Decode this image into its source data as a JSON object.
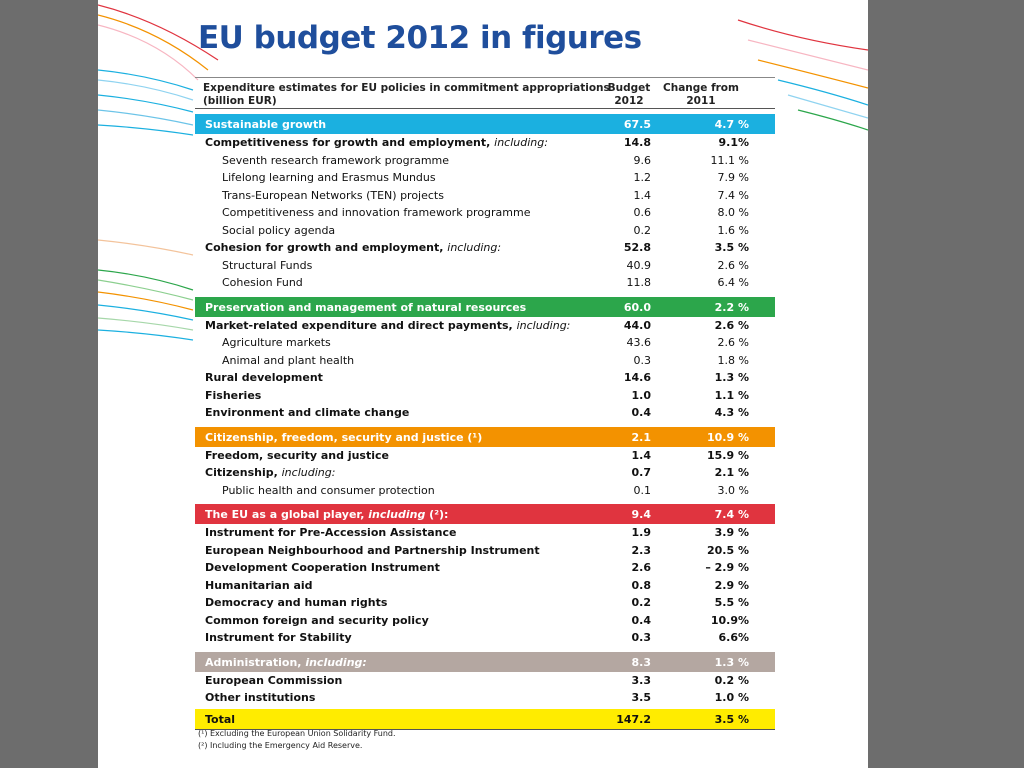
{
  "title": "EU budget 2012 in figures",
  "header": {
    "label": "Expenditure estimates for EU policies in commitment appropriations",
    "unit": "(billion EUR)",
    "budget": "Budget 2012",
    "change": "Change from 2011"
  },
  "sections": [
    {
      "label": "Sustainable growth",
      "budget": "67.5",
      "change": "4.7 %",
      "color": "#1bb0e0",
      "rows": [
        {
          "label": "Competitiveness for growth and employment,",
          "label_italic": "including:",
          "budget": "14.8",
          "change": "9.1%",
          "sub": false
        },
        {
          "label": "Seventh research framework programme",
          "budget": "9.6",
          "change": "11.1 %",
          "sub": true
        },
        {
          "label": "Lifelong learning and Erasmus Mundus",
          "budget": "1.2",
          "change": "7.9 %",
          "sub": true
        },
        {
          "label": "Trans-European Networks (TEN) projects",
          "budget": "1.4",
          "change": "7.4 %",
          "sub": true
        },
        {
          "label": "Competitiveness and innovation framework programme",
          "budget": "0.6",
          "change": "8.0 %",
          "sub": true
        },
        {
          "label": "Social policy agenda",
          "budget": "0.2",
          "change": "1.6 %",
          "sub": true
        },
        {
          "label": "Cohesion for growth and employment,",
          "label_italic": "including:",
          "budget": "52.8",
          "change": "3.5 %",
          "sub": false
        },
        {
          "label": "Structural Funds",
          "budget": "40.9",
          "change": "2.6 %",
          "sub": true
        },
        {
          "label": "Cohesion Fund",
          "budget": "11.8",
          "change": "6.4 %",
          "sub": true
        }
      ]
    },
    {
      "label": "Preservation and management of natural resources",
      "budget": "60.0",
      "change": "2.2 %",
      "color": "#2ca64b",
      "rows": [
        {
          "label": "Market-related expenditure and direct payments,",
          "label_italic": "including:",
          "budget": "44.0",
          "change": "2.6 %",
          "sub": false
        },
        {
          "label": "Agriculture markets",
          "budget": "43.6",
          "change": "2.6 %",
          "sub": true
        },
        {
          "label": "Animal and plant health",
          "budget": "0.3",
          "change": "1.8 %",
          "sub": true
        },
        {
          "label": "Rural development",
          "budget": "14.6",
          "change": "1.3 %",
          "sub": false
        },
        {
          "label": "Fisheries",
          "budget": "1.0",
          "change": "1.1 %",
          "sub": false
        },
        {
          "label": "Environment and climate change",
          "budget": "0.4",
          "change": "4.3 %",
          "sub": false
        }
      ]
    },
    {
      "label": "Citizenship, freedom, security and justice (¹)",
      "budget": "2.1",
      "change": "10.9 %",
      "color": "#f39200",
      "rows": [
        {
          "label": "Freedom, security and justice",
          "budget": "1.4",
          "change": "15.9 %",
          "sub": false
        },
        {
          "label": "Citizenship,",
          "label_italic": "including:",
          "budget": "0.7",
          "change": "2.1 %",
          "sub": false
        },
        {
          "label": "Public health and consumer protection",
          "budget": "0.1",
          "change": "3.0 %",
          "sub": true
        }
      ]
    },
    {
      "label": "The EU as a global player,",
      "label_italic": "including",
      "label_tail": "(²):",
      "budget": "9.4",
      "change": "7.4 %",
      "color": "#e0343f",
      "rows": [
        {
          "label": "Instrument for Pre-Accession Assistance",
          "budget": "1.9",
          "change": "3.9 %",
          "sub": false
        },
        {
          "label": "European Neighbourhood and Partnership Instrument",
          "budget": "2.3",
          "change": "20.5 %",
          "sub": false
        },
        {
          "label": "Development Cooperation Instrument",
          "budget": "2.6",
          "change": "– 2.9 %",
          "sub": false
        },
        {
          "label": "Humanitarian aid",
          "budget": "0.8",
          "change": "2.9 %",
          "sub": false
        },
        {
          "label": "Democracy and human rights",
          "budget": "0.2",
          "change": "5.5 %",
          "sub": false
        },
        {
          "label": "Common foreign and security policy",
          "budget": "0.4",
          "change": "10.9%",
          "sub": false
        },
        {
          "label": "Instrument for Stability",
          "budget": "0.3",
          "change": "6.6%",
          "sub": false
        }
      ]
    },
    {
      "label": "Administration,",
      "label_italic": "including:",
      "budget": "8.3",
      "change": "1.3 %",
      "color": "#b4a7a1",
      "rows": [
        {
          "label": "European Commission",
          "budget": "3.3",
          "change": "0.2 %",
          "sub": false
        },
        {
          "label": "Other institutions",
          "budget": "3.5",
          "change": "1.0 %",
          "sub": false
        }
      ]
    }
  ],
  "total": {
    "label": "Total",
    "budget": "147.2",
    "change": "3.5 %",
    "color": "#ffec00"
  },
  "footnotes": [
    "(¹) Excluding the European Union Solidarity Fund.",
    "(²) Including the Emergency Aid Reserve."
  ]
}
